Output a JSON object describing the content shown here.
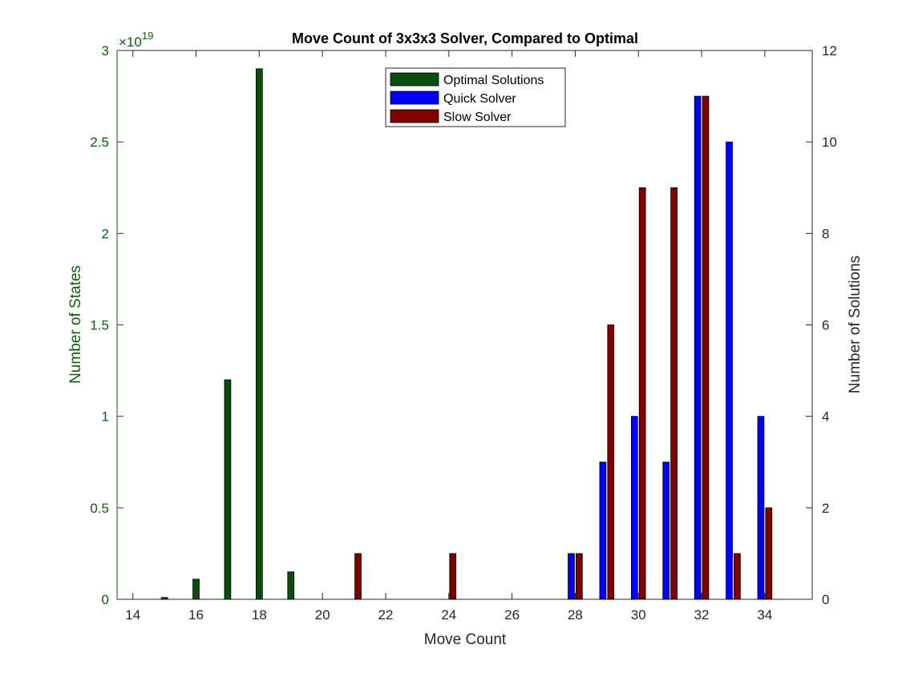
{
  "chart_data": {
    "type": "bar",
    "title": "Move Count of 3x3x3 Solver, Compared to Optimal",
    "xlabel": "Move Count",
    "ylabel_left": "Number of States",
    "ylabel_right": "Number of Solutions",
    "left_exponent_base": "×10",
    "left_exponent_power": "19",
    "xlim": [
      13.5,
      35.5
    ],
    "ylim_left": [
      0,
      3
    ],
    "ylim_right": [
      0,
      12
    ],
    "x_ticks": [
      14,
      16,
      18,
      20,
      22,
      24,
      26,
      28,
      30,
      32,
      34
    ],
    "y_ticks_left": [
      "0",
      "0.5",
      "1",
      "1.5",
      "2",
      "2.5",
      "3"
    ],
    "y_ticks_right": [
      "0",
      "2",
      "4",
      "6",
      "8",
      "10",
      "12"
    ],
    "grid": false,
    "legend_position": "top-center",
    "series": [
      {
        "name": "Optimal Solutions",
        "axis": "left",
        "color": "#0b4d0b",
        "points": [
          {
            "x": 15,
            "y": 0.01
          },
          {
            "x": 16,
            "y": 0.11
          },
          {
            "x": 17,
            "y": 1.2
          },
          {
            "x": 18,
            "y": 2.9
          },
          {
            "x": 19,
            "y": 0.15
          }
        ]
      },
      {
        "name": "Quick Solver",
        "axis": "right",
        "color": "#0000ff",
        "points": [
          {
            "x": 28,
            "y": 1
          },
          {
            "x": 29,
            "y": 3
          },
          {
            "x": 30,
            "y": 4
          },
          {
            "x": 31,
            "y": 3
          },
          {
            "x": 32,
            "y": 11
          },
          {
            "x": 33,
            "y": 10
          },
          {
            "x": 34,
            "y": 4
          }
        ]
      },
      {
        "name": "Slow Solver",
        "axis": "right",
        "color": "#800000",
        "points": [
          {
            "x": 21,
            "y": 1
          },
          {
            "x": 24,
            "y": 1
          },
          {
            "x": 28,
            "y": 1
          },
          {
            "x": 29,
            "y": 6
          },
          {
            "x": 30,
            "y": 9
          },
          {
            "x": 31,
            "y": 9
          },
          {
            "x": 32,
            "y": 11
          },
          {
            "x": 33,
            "y": 1
          },
          {
            "x": 34,
            "y": 2
          }
        ]
      }
    ],
    "colors": {
      "left_axis": "#0b5e0b",
      "right_axis": "#262626",
      "frame": "#262626"
    }
  }
}
